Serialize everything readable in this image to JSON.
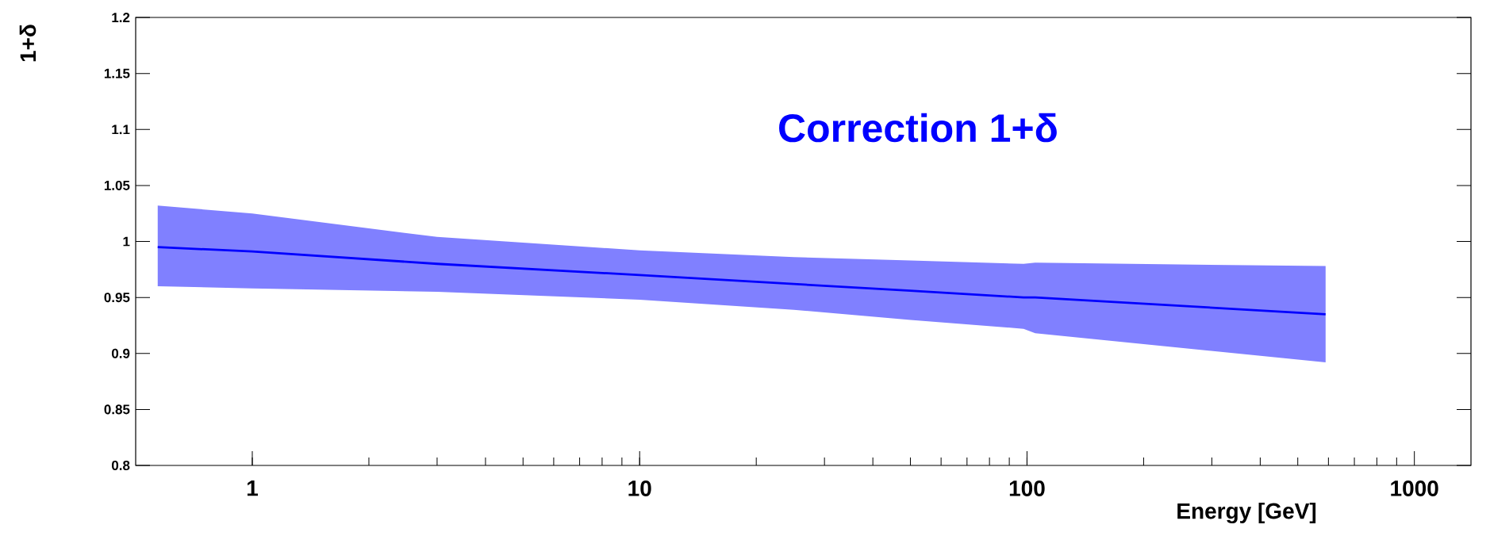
{
  "chart_data": {
    "type": "line",
    "title": "Correction 1+δ",
    "xlabel": "Energy [GeV]",
    "ylabel": "1+δ",
    "log": "x",
    "xlim": [
      0.5,
      1400
    ],
    "ylim": [
      0.8,
      1.2
    ],
    "xticks": [
      1,
      10,
      100,
      1000
    ],
    "yticks": [
      {
        "value": 0.8,
        "label": "0.8"
      },
      {
        "value": 0.85,
        "label": "0.85"
      },
      {
        "value": 0.9,
        "label": "0.9"
      },
      {
        "value": 0.95,
        "label": "0.95"
      },
      {
        "value": 1,
        "label": "1"
      },
      {
        "value": 1.05,
        "label": "1.05"
      },
      {
        "value": 1.1,
        "label": "1.1"
      },
      {
        "value": 1.15,
        "label": "1.15"
      },
      {
        "value": 1.2,
        "label": "1.2"
      }
    ],
    "grid": false,
    "series": [
      {
        "color": "#0000ff",
        "x": [
          0.57,
          1,
          3,
          10,
          25,
          50,
          98,
          105,
          590
        ],
        "values": [
          0.995,
          0.991,
          0.98,
          0.97,
          0.962,
          0.956,
          0.95,
          0.95,
          0.935
        ],
        "lower": [
          0.96,
          0.958,
          0.955,
          0.948,
          0.939,
          0.93,
          0.922,
          0.918,
          0.892
        ],
        "upper": [
          1.032,
          1.025,
          1.004,
          0.992,
          0.986,
          0.983,
          0.98,
          0.981,
          0.978
        ]
      }
    ]
  }
}
